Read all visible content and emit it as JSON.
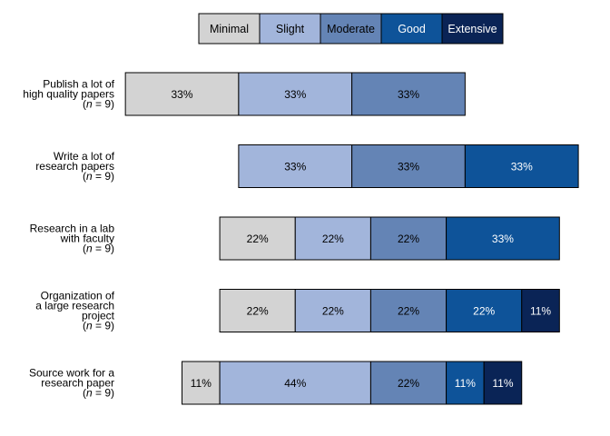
{
  "chart_data": {
    "type": "bar",
    "orientation": "horizontal",
    "stacked": true,
    "title": "",
    "xlabel": "",
    "ylabel": "",
    "legend_position": "top",
    "grid": false,
    "series": [
      {
        "name": "Minimal",
        "color": "#d3d3d3",
        "text_color": "#000000",
        "values": [
          33,
          null,
          22,
          22,
          11
        ]
      },
      {
        "name": "Slight",
        "color": "#a2b5db",
        "text_color": "#000000",
        "values": [
          33,
          33,
          22,
          22,
          44
        ]
      },
      {
        "name": "Moderate",
        "color": "#6484b5",
        "text_color": "#000000",
        "values": [
          33,
          33,
          22,
          22,
          22
        ]
      },
      {
        "name": "Good",
        "color": "#0e5399",
        "text_color": "#ffffff",
        "values": [
          null,
          33,
          33,
          22,
          11
        ]
      },
      {
        "name": "Extensive",
        "color": "#0a2456",
        "text_color": "#ffffff",
        "values": [
          null,
          null,
          null,
          11,
          11
        ]
      }
    ],
    "categories": [
      {
        "lines": [
          "Publish a lot of",
          "high quality papers"
        ],
        "n": "(n = 9)"
      },
      {
        "lines": [
          "Write a lot of",
          "research papers"
        ],
        "n": "(n = 9)"
      },
      {
        "lines": [
          "Research in a lab",
          "with faculty"
        ],
        "n": "(n = 9)"
      },
      {
        "lines": [
          "Organization of",
          "a large research",
          "project"
        ],
        "n": "(n = 9)"
      },
      {
        "lines": [
          "Source work for a",
          "research paper"
        ],
        "n": "(n = 9)"
      }
    ],
    "value_suffix": "%",
    "centered_on": "Moderate"
  }
}
